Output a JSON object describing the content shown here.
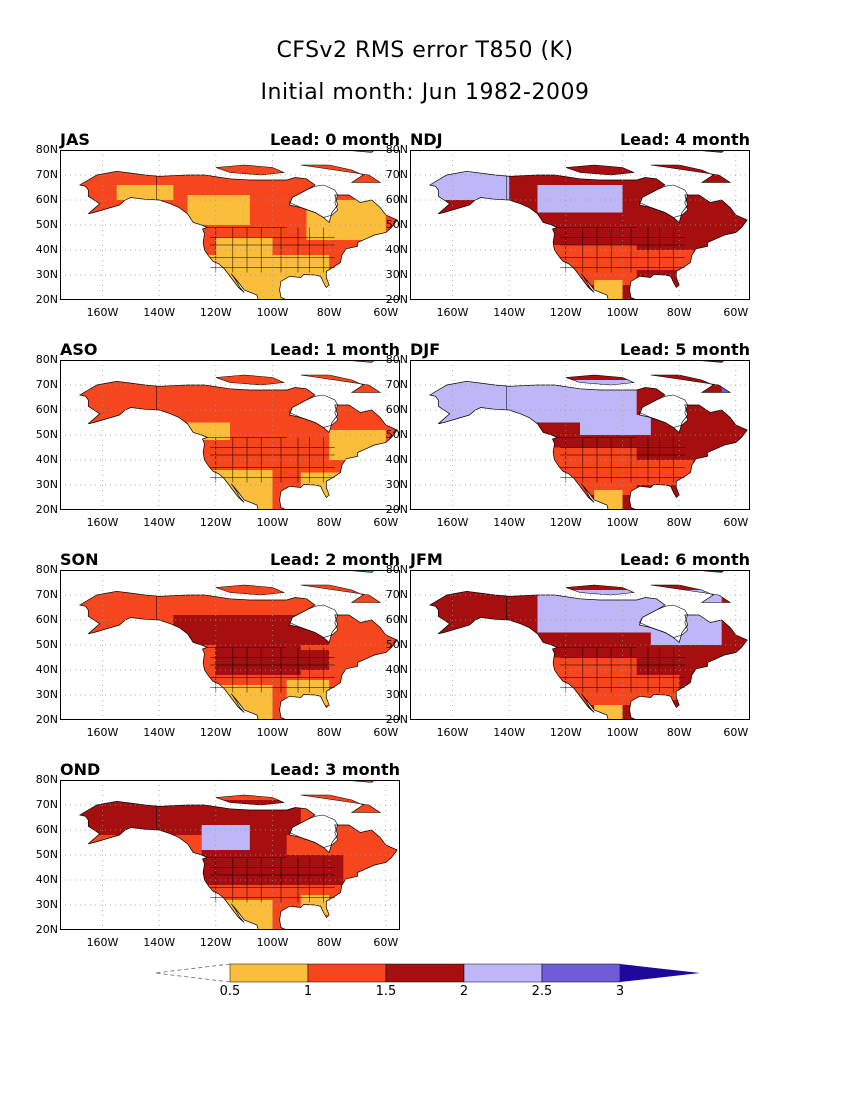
{
  "title": "CFSv2 RMS error T850 (K)",
  "subtitle": "Initial month: Jun 1982-2009",
  "colors": {
    "c05_1": "#fbbd3c",
    "c1_15": "#f5461e",
    "c15_2": "#a50f0f",
    "c2_25": "#bdb7f8",
    "c25_3": "#6e5dd8",
    "c3p": "#1e0a9a",
    "land_white": "#ffffff",
    "grid": "#999999"
  },
  "lat_labels": [
    "80N",
    "70N",
    "60N",
    "50N",
    "40N",
    "30N",
    "20N"
  ],
  "lon_labels": [
    "160W",
    "140W",
    "120W",
    "100W",
    "80W",
    "60W"
  ],
  "panels": [
    {
      "season": "JAS",
      "lead": "Lead: 0 month",
      "scheme": "lead0"
    },
    {
      "season": "NDJ",
      "lead": "Lead: 4 month",
      "scheme": "lead4"
    },
    {
      "season": "ASO",
      "lead": "Lead: 1 month",
      "scheme": "lead1"
    },
    {
      "season": "DJF",
      "lead": "Lead: 5 month",
      "scheme": "lead5"
    },
    {
      "season": "SON",
      "lead": "Lead: 2 month",
      "scheme": "lead2"
    },
    {
      "season": "JFM",
      "lead": "Lead: 6 month",
      "scheme": "lead6"
    },
    {
      "season": "OND",
      "lead": "Lead: 3 month",
      "scheme": "lead3"
    }
  ],
  "colorbar": {
    "ticks": [
      "0.5",
      "1",
      "1.5",
      "2",
      "2.5",
      "3"
    ]
  }
}
